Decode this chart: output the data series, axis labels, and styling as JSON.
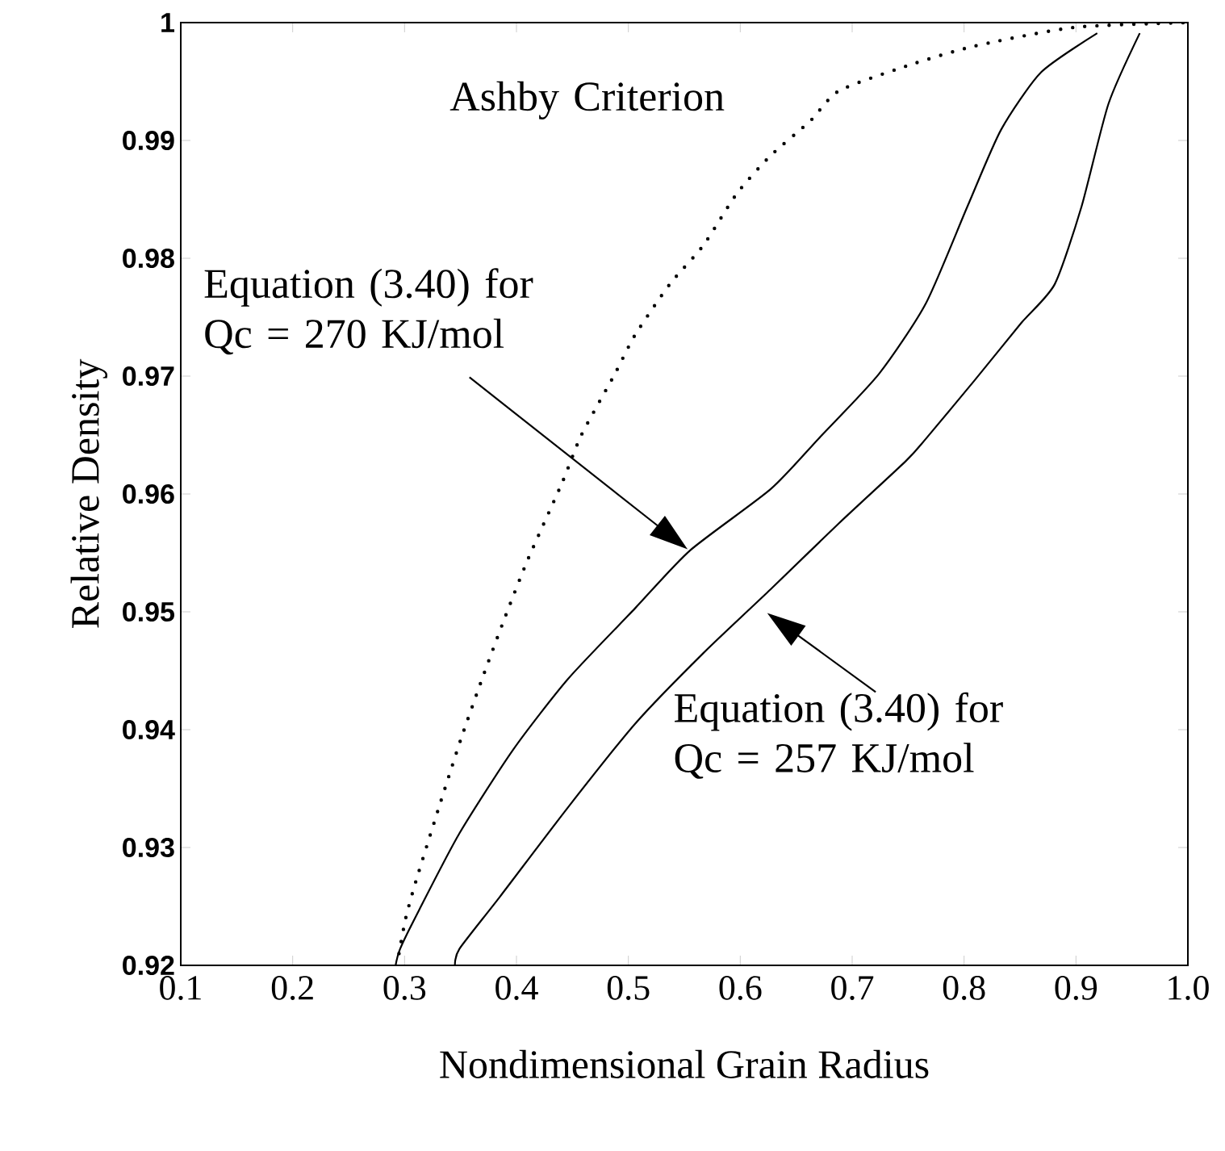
{
  "chart_data": {
    "type": "line",
    "xlabel": "Nondimensional Grain Radius",
    "ylabel": "Relative Density",
    "xlim": [
      0.1,
      1.0
    ],
    "ylim": [
      0.92,
      1.0
    ],
    "xticks": [
      0.1,
      0.2,
      0.3,
      0.4,
      0.5,
      0.6,
      0.7,
      0.8,
      0.9,
      {
        "value": 1.0,
        "label": "1.0"
      }
    ],
    "yticks": [
      0.92,
      0.93,
      0.94,
      0.95,
      0.96,
      0.97,
      0.98,
      0.99,
      1
    ],
    "grid": false,
    "marker": "none",
    "annotations": [
      "Ashby Criterion",
      "Equation (3.40) for Qc = 270 KJ/mol",
      "Equation (3.40) for Qc = 257 KJ/mol"
    ],
    "series": [
      {
        "color": "#000000",
        "line_style": "dotted",
        "x": [
          0.295,
          0.301,
          0.31,
          0.33,
          0.35,
          0.37,
          0.39,
          0.41,
          0.441,
          0.458,
          0.488,
          0.506,
          0.537,
          0.567,
          0.597,
          0.627,
          0.663,
          0.688,
          0.748,
          0.809,
          0.899,
          1.0
        ],
        "values": [
          0.921,
          0.924,
          0.9271,
          0.9332,
          0.9391,
          0.9445,
          0.9496,
          0.9544,
          0.961,
          0.965,
          0.9702,
          0.9735,
          0.9778,
          0.9811,
          0.9855,
          0.9887,
          0.9917,
          0.9942,
          0.9963,
          0.998,
          0.9996,
          1.0
        ]
      },
      {
        "color": "#000000",
        "line_style": "solid",
        "x": [
          0.292,
          0.296,
          0.313,
          0.349,
          0.397,
          0.446,
          0.506,
          0.555,
          0.627,
          0.67,
          0.724,
          0.766,
          0.803,
          0.833,
          0.869,
          0.919
        ],
        "values": [
          0.92,
          0.9214,
          0.9247,
          0.9312,
          0.9383,
          0.9443,
          0.9503,
          0.9552,
          0.9604,
          0.9647,
          0.9702,
          0.9762,
          0.9844,
          0.9909,
          0.9958,
          0.9991
        ]
      },
      {
        "color": "#000000",
        "line_style": "solid",
        "x": [
          0.345,
          0.349,
          0.385,
          0.446,
          0.506,
          0.567,
          0.627,
          0.688,
          0.748,
          0.766,
          0.809,
          0.851,
          0.881,
          0.905,
          0.929,
          0.957
        ],
        "values": [
          0.92,
          0.9214,
          0.9258,
          0.9334,
          0.9405,
          0.9465,
          0.9519,
          0.9575,
          0.9628,
          0.9647,
          0.9696,
          0.9745,
          0.9778,
          0.9844,
          0.9931,
          0.9991
        ]
      }
    ]
  }
}
